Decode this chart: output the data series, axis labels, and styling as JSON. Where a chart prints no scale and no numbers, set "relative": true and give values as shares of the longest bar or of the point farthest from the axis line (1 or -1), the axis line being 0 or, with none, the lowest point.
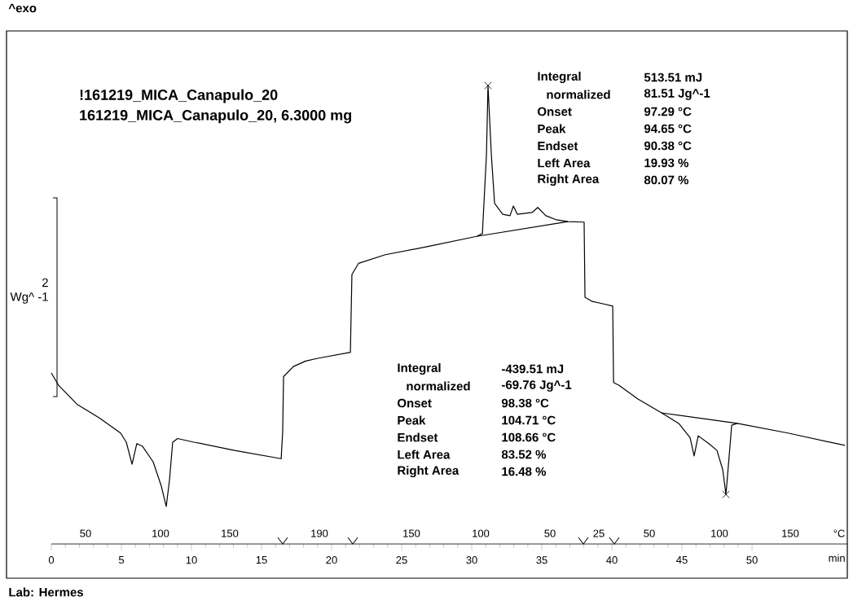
{
  "chart_data": {
    "type": "line",
    "relative": true,
    "title": "!161219_MICA_Canapulo_20",
    "subtitle": "161219_MICA_Canapulo_20, 6.3000 mg",
    "xlabel": "min",
    "xlim": [
      0,
      56.8
    ],
    "xticks": [
      0,
      5,
      10,
      15,
      20,
      25,
      30,
      35,
      40,
      45,
      50
    ],
    "series": [
      {
        "color": "#000000",
        "x": [
          0,
          0.52,
          1.86,
          3.43,
          4.94,
          5.35,
          5.76,
          6.1,
          6.51,
          7.27,
          7.85,
          8.2,
          8.43,
          8.66,
          9.01,
          10.17,
          10.7,
          13.08,
          16.4,
          16.51,
          16.57,
          17.27,
          18.14,
          19.01,
          21.34,
          21.45,
          21.92,
          23.84,
          26.74,
          30.35,
          30.76,
          31.05,
          31.16,
          31.4,
          31.63,
          32.21,
          32.73,
          32.97,
          33.26,
          34.3,
          34.71,
          35.29,
          36.05,
          36.86,
          38.02,
          38.08,
          38.6,
          39.36,
          40.06,
          40.12,
          40.52,
          41.86,
          43.55,
          44.77,
          45.58,
          45.87,
          46.16,
          46.92,
          47.5,
          47.91,
          48.14,
          48.37,
          48.55,
          48.95,
          52.56,
          56.63
        ],
        "values": [
          0.373,
          0.346,
          0.304,
          0.275,
          0.242,
          0.222,
          0.174,
          0.219,
          0.213,
          0.179,
          0.126,
          0.082,
          0.139,
          0.222,
          0.23,
          0.222,
          0.219,
          0.204,
          0.186,
          0.245,
          0.365,
          0.387,
          0.399,
          0.405,
          0.418,
          0.588,
          0.612,
          0.631,
          0.648,
          0.671,
          0.677,
          0.849,
          1,
          0.849,
          0.743,
          0.719,
          0.716,
          0.737,
          0.719,
          0.723,
          0.734,
          0.716,
          0.707,
          0.703,
          0.702,
          0.538,
          0.529,
          0.524,
          0.519,
          0.352,
          0.346,
          0.316,
          0.286,
          0.263,
          0.232,
          0.192,
          0.236,
          0.219,
          0.204,
          0.162,
          0.108,
          0.192,
          0.259,
          0.263,
          0.242,
          0.215
        ]
      },
      {
        "color": "#000000",
        "x": [
          30.35,
          36.86
        ],
        "values": [
          0.671,
          0.703
        ]
      },
      {
        "color": "#000000",
        "x": [
          43.55,
          48.95
        ],
        "values": [
          0.286,
          0.263
        ]
      },
      {
        "type": "scatter",
        "marker": "cross",
        "color": "#000000",
        "x": [
          31.16,
          48.14
        ],
        "values": [
          1,
          0.108
        ]
      }
    ],
    "annotations": [
      "^exo",
      "2",
      "Wg^ -1",
      "Integral",
      "513.51 mJ",
      "normalized",
      "81.51 Jg^-1",
      "Onset",
      "97.29 °C",
      "Peak",
      "94.65 °C",
      "Endset",
      "90.38 °C",
      "Left Area",
      "19.93 %",
      "Right Area",
      "80.07 %",
      "Integral",
      "-439.51 mJ",
      "normalized",
      "-69.76 Jg^-1",
      "Onset",
      "98.38 °C",
      "Peak",
      "104.71 °C",
      "Endset",
      "108.66 °C",
      "Left Area",
      "83.52 %",
      "Right Area",
      "16.48 %",
      "Lab: Hermes",
      "50",
      "100",
      "150",
      "190",
      "150",
      "100",
      "50",
      "25",
      "50",
      "100",
      "150",
      "°C"
    ]
  }
}
